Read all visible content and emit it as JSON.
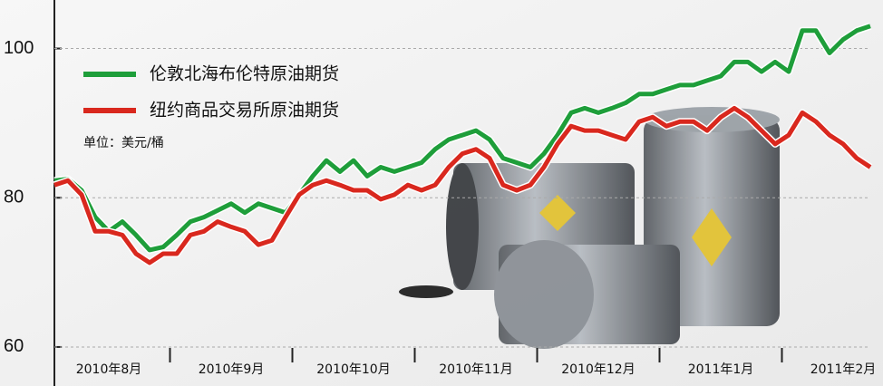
{
  "chart_data": {
    "type": "line",
    "legend_labels_note_free": null,
    "unit": "单位：美元/桶",
    "categories": [
      null,
      null,
      null,
      null,
      "2010年8月",
      null,
      null,
      null,
      null,
      null,
      null,
      null,
      null,
      "2010年9月",
      null,
      null,
      null,
      null,
      null,
      null,
      null,
      null,
      "2010年10月",
      null,
      null,
      null,
      null,
      null,
      null,
      null,
      null,
      "2010年11月",
      null,
      null,
      null,
      null,
      null,
      null,
      null,
      null,
      "2010年12月",
      null,
      null,
      null,
      null,
      null,
      null,
      null,
      null,
      "2011年1月",
      null,
      null,
      null,
      null,
      null,
      null,
      null,
      null,
      "2011年2月",
      null,
      null
    ],
    "series": [
      {
        "name": "伦敦北海布伦特原油期货",
        "color": "#1e9e3a",
        "values": [
          82.3,
          82.5,
          81,
          77.4,
          75.5,
          76.8,
          75,
          73,
          73.4,
          75,
          76.8,
          77.4,
          78.3,
          79.2,
          78,
          79.2,
          78.6,
          78,
          80.4,
          82.9,
          85,
          83.5,
          85,
          82.9,
          84.1,
          83.5,
          84.1,
          84.7,
          86.5,
          87.8,
          88.4,
          89,
          87.8,
          85.3,
          84.7,
          84.1,
          85.9,
          88.4,
          91.4,
          92,
          91.4,
          92,
          92.7,
          93.9,
          93.9,
          94.5,
          95.1,
          95.1,
          95.7,
          96.3,
          98.2,
          98.2,
          96.9,
          98.2,
          96.9,
          102.4,
          102.4,
          99.4,
          101.2,
          102.4,
          103
        ]
      },
      {
        "name": "纽约商品交易所原油期货",
        "color": "#d9281e",
        "values": [
          81.7,
          82.3,
          80.4,
          75.5,
          75.5,
          75,
          72.5,
          71.3,
          72.5,
          72.5,
          75,
          75.5,
          76.8,
          76.1,
          75.5,
          73.7,
          74.3,
          77.4,
          80.4,
          81.7,
          82.3,
          81.7,
          81,
          81,
          79.8,
          80.4,
          81.7,
          81,
          81.7,
          84.1,
          85.9,
          86.5,
          85.3,
          81.7,
          81,
          81.7,
          84.1,
          87.2,
          89.6,
          89,
          89,
          88.4,
          87.8,
          90.2,
          90.8,
          89.6,
          90.2,
          90.2,
          89,
          90.8,
          92,
          90.8,
          89,
          87.2,
          88.4,
          91.4,
          90.2,
          88.4,
          87.2,
          85.3,
          84.1
        ]
      }
    ],
    "ylim": [
      55.5,
      106.5
    ],
    "yticks": [
      60,
      80,
      100
    ],
    "grid": true
  }
}
